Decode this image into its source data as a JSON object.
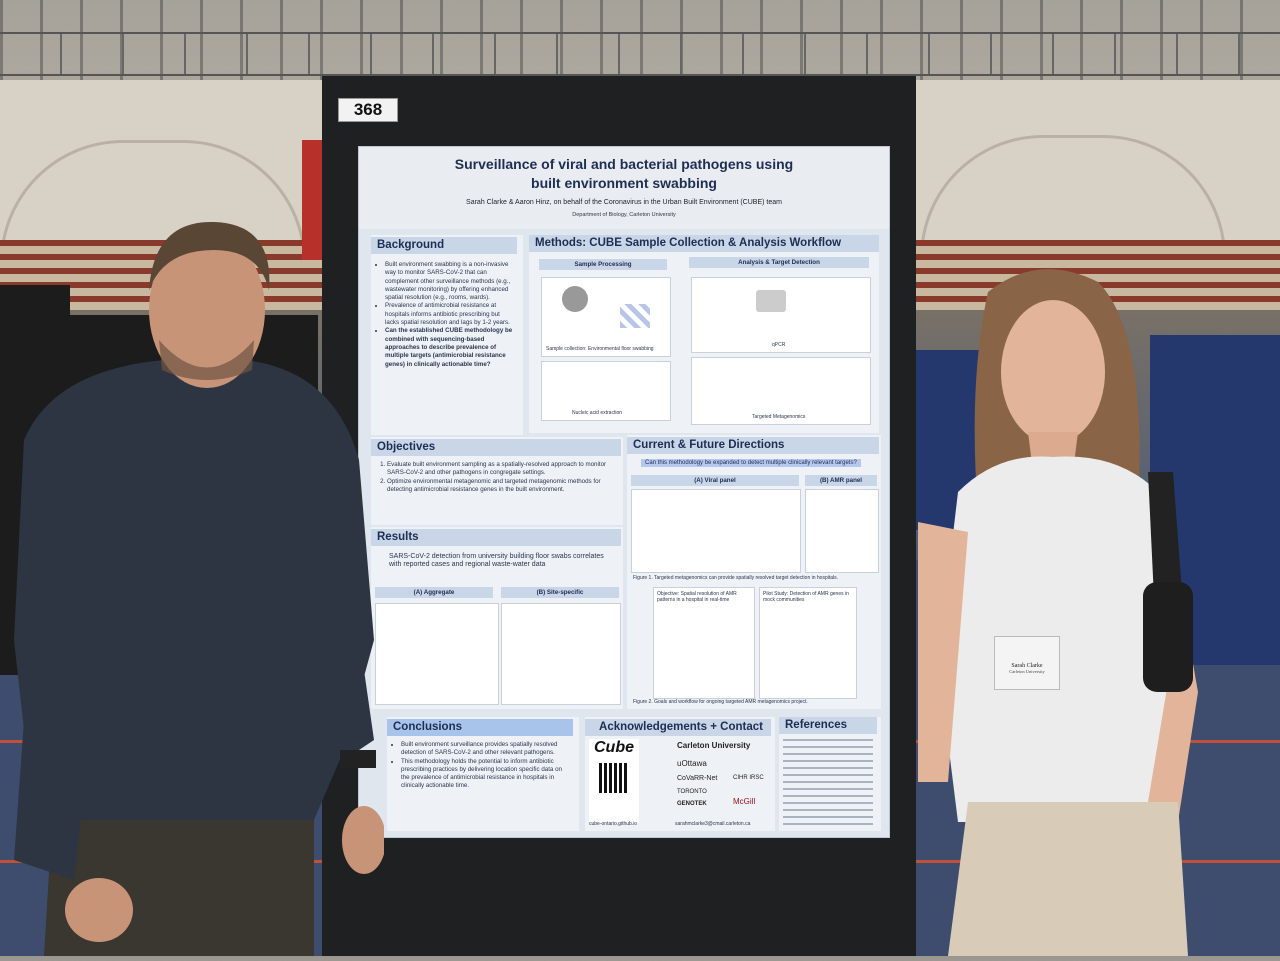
{
  "poster": {
    "number": "368",
    "title_line1": "Surveillance of viral and bacterial pathogens using",
    "title_line2": "built environment swabbing",
    "authors": "Sarah Clarke & Aaron Hinz, on behalf of the Coronavirus in the Urban Built Environment (CUBE) team",
    "department": "Department of Biology, Carleton University",
    "background": {
      "heading": "Background",
      "bullets": [
        "Built environment swabbing is a non-invasive way to monitor SARS-CoV-2 that can complement other surveillance methods (e.g., wastewater monitoring) by offering enhanced spatial resolution (e.g., rooms, wards).",
        "Prevalence of antimicrobial resistance at hospitals informs antibiotic prescribing but lacks spatial resolution and lags by 1-2 years.",
        "Can the established CUBE methodology be combined with sequencing-based approaches to describe prevalence of multiple targets (antimicrobial resistance genes) in clinically actionable time?"
      ]
    },
    "methods": {
      "heading": "Methods: CUBE Sample Collection & Analysis Workflow",
      "sample_processing": "Sample Processing",
      "analysis": "Analysis & Target Detection",
      "sample_collection": "Sample collection: Environmental floor swabbing",
      "nucleic": "Nucleic acid extraction",
      "qpcr": "qPCR",
      "targeted": "Targeted Metagenomics"
    },
    "objectives": {
      "heading": "Objectives",
      "items": [
        "Evaluate built environment sampling as a spatially-resolved approach to monitor SARS-CoV-2 and other pathogens in congregate settings.",
        "Optimize environmental metagenomic and targeted metagenomic methods for detecting antimicrobial resistance genes in the built environment."
      ]
    },
    "results": {
      "heading": "Results",
      "statement": "SARS-CoV-2 detection from university building floor swabs correlates with reported cases and regional waste-water data",
      "panel_a": "(A) Aggregate",
      "panel_b": "(B) Site-specific"
    },
    "current": {
      "heading": "Current & Future Directions",
      "question": "Can this methodology be expanded to detect multiple clinically relevant targets?",
      "panel_a": "(A) Viral panel",
      "panel_b": "(B) AMR panel",
      "fig1": "Figure 1. Targeted metagenomics can provide spatially resolved target detection in hospitals.",
      "objective": "Objective: Spatial resolution of AMR patterns in a hospital in real-time",
      "pilot": "Pilot Study: Detection of AMR genes in mock communities",
      "fig2": "Figure 2. Goals and workflow for ongoing targeted AMR metagenomics project."
    },
    "conclusions": {
      "heading": "Conclusions",
      "bullets": [
        "Built environment surveillance provides spatially resolved detection of SARS-CoV-2 and other relevant pathogens.",
        "This methodology holds the potential to inform antibiotic prescribing practices by delivering location specific data on the prevalence of antimicrobial resistance in hospitals in clinically actionable time."
      ]
    },
    "ack": {
      "heading": "Acknowledgements + Contact",
      "cube": "Cube",
      "github": "cube-ontario.github.io",
      "email": "sarahmclarke3@cmail.carleton.ca",
      "logos": [
        "Carleton University",
        "uOttawa",
        "CoVaRR-Net",
        "CIHR IRSC",
        "TORONTO",
        "GENOTEK",
        "McGill"
      ]
    },
    "references": {
      "heading": "References"
    }
  },
  "badge": {
    "name": "Sarah Clarke",
    "role": "Carleton University"
  }
}
